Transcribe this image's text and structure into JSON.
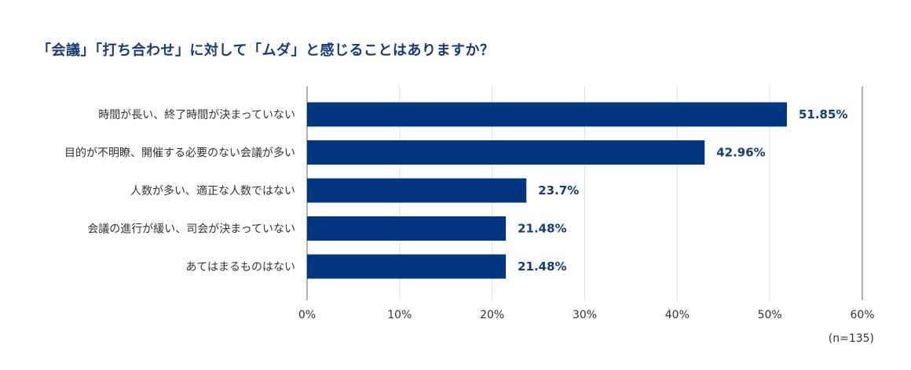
{
  "chart_data": {
    "type": "bar",
    "orientation": "horizontal",
    "title": "「会議」「打ち合わせ」に対して「ムダ」と感じることはありますか？",
    "categories": [
      "時間が長い、終了時間が決まっていない",
      "目的が不明瞭、開催する必要のない会議が多い",
      "人数が多い、適正な人数ではない",
      "会議の進行が緩い、司会が決まっていない",
      "あてはまるものはない"
    ],
    "values": [
      51.85,
      42.96,
      23.7,
      21.48,
      21.48
    ],
    "value_labels": [
      "51.85%",
      "42.96%",
      "23.7%",
      "21.48%",
      "21.48%"
    ],
    "xlim": [
      0,
      60
    ],
    "xticks": [
      0,
      10,
      20,
      30,
      40,
      50,
      60
    ],
    "xtick_labels": [
      "0%",
      "10%",
      "20%",
      "30%",
      "40%",
      "50%",
      "60%"
    ],
    "grid": true,
    "bar_color": "#003580",
    "value_label_color": "#173a7a",
    "title_color": "#173a7a",
    "note": "(n=135)"
  }
}
